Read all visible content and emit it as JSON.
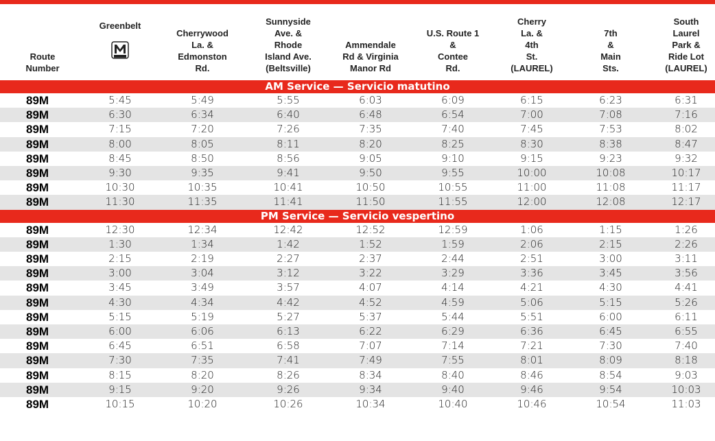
{
  "table": {
    "columns": [
      [
        "Route",
        "Number"
      ],
      [
        "Greenbelt"
      ],
      [
        "Cherrywood",
        "La. &",
        "Edmonston",
        "Rd."
      ],
      [
        "Sunnyside",
        "Ave. &",
        "Rhode",
        "Island Ave.",
        "(Beltsville)"
      ],
      [
        "Ammendale",
        "Rd & Virginia",
        "Manor Rd"
      ],
      [
        "U.S. Route 1",
        "&",
        "Contee",
        "Rd."
      ],
      [
        "Cherry",
        "La. &",
        "4th",
        "St.",
        "(LAUREL)"
      ],
      [
        "7th",
        "&",
        "Main",
        "Sts."
      ],
      [
        "South",
        "Laurel",
        "Park &",
        "Ride Lot",
        "(LAUREL)"
      ]
    ],
    "sections": [
      {
        "title": "AM Service — Servicio matutino",
        "rows": [
          [
            "89M",
            "5:45",
            "5:49",
            "5:55",
            "6:03",
            "6:09",
            "6:15",
            "6:23",
            "6:31"
          ],
          [
            "89M",
            "6:30",
            "6:34",
            "6:40",
            "6:48",
            "6:54",
            "7:00",
            "7:08",
            "7:16"
          ],
          [
            "89M",
            "7:15",
            "7:20",
            "7:26",
            "7:35",
            "7:40",
            "7:45",
            "7:53",
            "8:02"
          ],
          [
            "89M",
            "8:00",
            "8:05",
            "8:11",
            "8:20",
            "8:25",
            "8:30",
            "8:38",
            "8:47"
          ],
          [
            "89M",
            "8:45",
            "8:50",
            "8:56",
            "9:05",
            "9:10",
            "9:15",
            "9:23",
            "9:32"
          ],
          [
            "89M",
            "9:30",
            "9:35",
            "9:41",
            "9:50",
            "9:55",
            "10:00",
            "10:08",
            "10:17"
          ],
          [
            "89M",
            "10:30",
            "10:35",
            "10:41",
            "10:50",
            "10:55",
            "11:00",
            "11:08",
            "11:17"
          ],
          [
            "89M",
            "11:30",
            "11:35",
            "11:41",
            "11:50",
            "11:55",
            "12:00",
            "12:08",
            "12:17"
          ]
        ]
      },
      {
        "title": "PM Service — Servicio vespertino",
        "rows": [
          [
            "89M",
            "12:30",
            "12:34",
            "12:42",
            "12:52",
            "12:59",
            "1:06",
            "1:15",
            "1:26"
          ],
          [
            "89M",
            "1:30",
            "1:34",
            "1:42",
            "1:52",
            "1:59",
            "2:06",
            "2:15",
            "2:26"
          ],
          [
            "89M",
            "2:15",
            "2:19",
            "2:27",
            "2:37",
            "2:44",
            "2:51",
            "3:00",
            "3:11"
          ],
          [
            "89M",
            "3:00",
            "3:04",
            "3:12",
            "3:22",
            "3:29",
            "3:36",
            "3:45",
            "3:56"
          ],
          [
            "89M",
            "3:45",
            "3:49",
            "3:57",
            "4:07",
            "4:14",
            "4:21",
            "4:30",
            "4:41"
          ],
          [
            "89M",
            "4:30",
            "4:34",
            "4:42",
            "4:52",
            "4:59",
            "5:06",
            "5:15",
            "5:26"
          ],
          [
            "89M",
            "5:15",
            "5:19",
            "5:27",
            "5:37",
            "5:44",
            "5:51",
            "6:00",
            "6:11"
          ],
          [
            "89M",
            "6:00",
            "6:06",
            "6:13",
            "6:22",
            "6:29",
            "6:36",
            "6:45",
            "6:55"
          ],
          [
            "89M",
            "6:45",
            "6:51",
            "6:58",
            "7:07",
            "7:14",
            "7:21",
            "7:30",
            "7:40"
          ],
          [
            "89M",
            "7:30",
            "7:35",
            "7:41",
            "7:49",
            "7:55",
            "8:01",
            "8:09",
            "8:18"
          ],
          [
            "89M",
            "8:15",
            "8:20",
            "8:26",
            "8:34",
            "8:40",
            "8:46",
            "8:54",
            "9:03"
          ],
          [
            "89M",
            "9:15",
            "9:20",
            "9:26",
            "9:34",
            "9:40",
            "9:46",
            "9:54",
            "10:03"
          ],
          [
            "89M",
            "10:15",
            "10:20",
            "10:26",
            "10:34",
            "10:40",
            "10:46",
            "10:54",
            "11:03"
          ]
        ]
      }
    ]
  }
}
